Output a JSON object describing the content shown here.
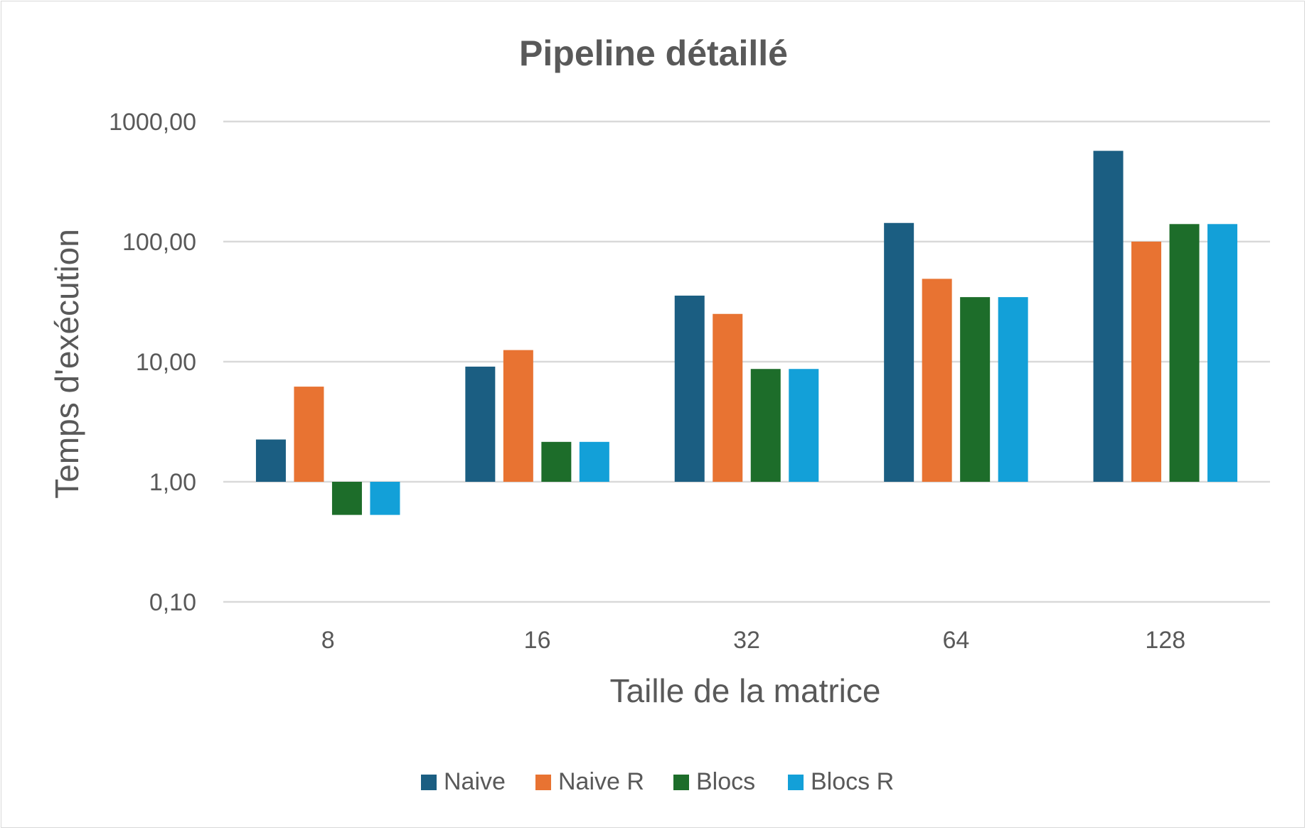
{
  "chart_data": {
    "type": "bar",
    "title": "Pipeline détaillé",
    "xlabel": "Taille de la matrice",
    "ylabel": "Temps d'exécution",
    "yscale": "log",
    "ylim": [
      0.1,
      1000
    ],
    "yticks": [
      "0,10",
      "1,00",
      "10,00",
      "100,00",
      "1000,00"
    ],
    "ytick_values": [
      0.1,
      1,
      10,
      100,
      1000
    ],
    "grid": true,
    "legend": "bottom",
    "categories": [
      "8",
      "16",
      "32",
      "64",
      "128"
    ],
    "series": [
      {
        "name": "Naive",
        "color": "#1b5e82",
        "values": [
          2.25,
          9.1,
          35.5,
          143,
          570
        ]
      },
      {
        "name": "Naive R",
        "color": "#e87332",
        "values": [
          6.2,
          12.5,
          25,
          49,
          100
        ]
      },
      {
        "name": "Blocs",
        "color": "#1d6d2a",
        "values": [
          0.53,
          2.15,
          8.7,
          34.5,
          140
        ]
      },
      {
        "name": "Blocs R",
        "color": "#13a0d8",
        "values": [
          0.53,
          2.15,
          8.7,
          34.5,
          140
        ]
      }
    ]
  }
}
